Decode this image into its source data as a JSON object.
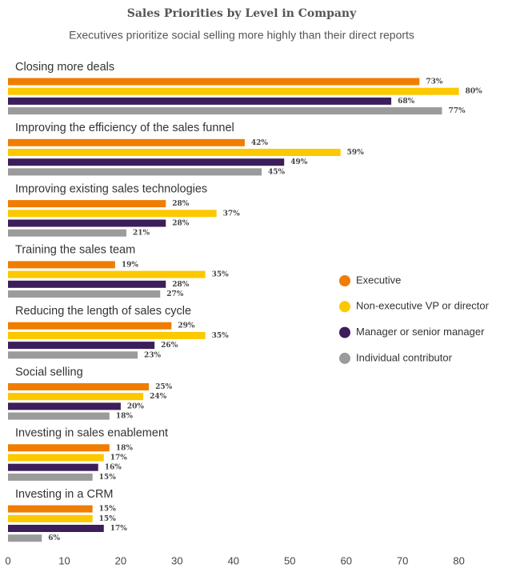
{
  "chart_data": {
    "type": "hbar",
    "title": "Sales Priorities by Level in Company",
    "subtitle": "Executives prioritize social selling more highly than their direct reports",
    "categories": [
      "Closing more deals",
      "Improving the efficiency of the sales funnel",
      "Improving existing sales technologies",
      "Training the sales team",
      "Reducing the length of sales cycle",
      "Social selling",
      "Investing in sales enablement",
      "Investing in a CRM"
    ],
    "series": [
      {
        "name": "Executive",
        "color": "#f07d00",
        "values": [
          73,
          42,
          28,
          19,
          29,
          25,
          18,
          15
        ],
        "value_labels": [
          "73%",
          "42%",
          "28%",
          "19%",
          "29%",
          "25%",
          "18%",
          "15%"
        ]
      },
      {
        "name": "Non-executive VP or director",
        "color": "#fcc800",
        "values": [
          80,
          59,
          37,
          35,
          35,
          24,
          17,
          15
        ],
        "value_labels": [
          "80%",
          "59%",
          "37%",
          "35%",
          "35%",
          "24%",
          "17%",
          "15%"
        ]
      },
      {
        "name": "Manager or senior manager",
        "color": "#3c1e5a",
        "values": [
          68,
          49,
          28,
          28,
          26,
          20,
          16,
          17
        ],
        "value_labels": [
          "68%",
          "49%",
          "28%",
          "28%",
          "26%",
          "20%",
          "16%",
          "17%"
        ]
      },
      {
        "name": "Individual contributor",
        "color": "#9b9b9b",
        "values": [
          77,
          45,
          21,
          27,
          23,
          18,
          15,
          6
        ],
        "value_labels": [
          "77%",
          "45%",
          "21%",
          "27%",
          "23%",
          "18%",
          "15%",
          "6%"
        ]
      }
    ],
    "xlim": [
      0,
      88
    ],
    "xticks": [
      0,
      10,
      20,
      30,
      40,
      50,
      60,
      70,
      80
    ],
    "legend": "right"
  }
}
